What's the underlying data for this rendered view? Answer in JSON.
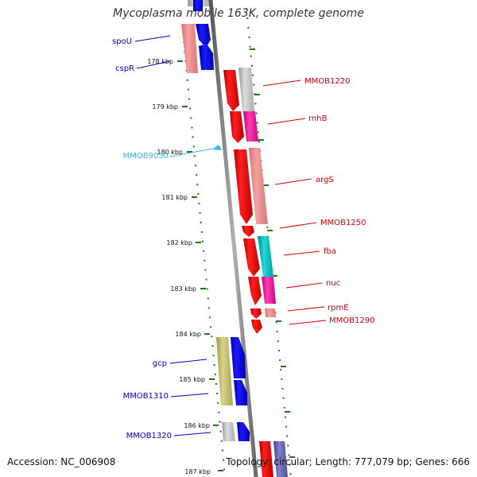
{
  "title": "Mycoplasma mobile 163K, complete genome",
  "accession": "Accession: NC_006908",
  "topology": "Topology: circular; Length: 777,079 bp; Genes: 666",
  "ticks": [
    "178 kbp",
    "179 kbp",
    "180 kbp",
    "181 kbp",
    "182 kbp",
    "183 kbp",
    "184 kbp",
    "185 kbp",
    "186 kbp",
    "187 kbp"
  ],
  "colors": {
    "backbone": "#808080",
    "tick": "#1a7a1a",
    "label_blue": "#0000cc",
    "label_red": "#cc0000",
    "label_cyan": "#33bbdd"
  },
  "genes": [
    {
      "name": "spoU",
      "side": "left",
      "color": "#0000cc"
    },
    {
      "name": "cspR",
      "side": "left",
      "color": "#0000cc"
    },
    {
      "name": "MMOB1220",
      "side": "right",
      "color": "#cc0000"
    },
    {
      "name": "rnhB",
      "side": "right",
      "color": "#cc0000"
    },
    {
      "name": "MMOB9030",
      "side": "left",
      "color": "#33bbdd"
    },
    {
      "name": "argS",
      "side": "right",
      "color": "#cc0000"
    },
    {
      "name": "MMOB1250",
      "side": "right",
      "color": "#cc0000"
    },
    {
      "name": "fba",
      "side": "right",
      "color": "#cc0000"
    },
    {
      "name": "nuc",
      "side": "right",
      "color": "#cc0000"
    },
    {
      "name": "rpmE",
      "side": "right",
      "color": "#cc0000"
    },
    {
      "name": "MMOB1290",
      "side": "right",
      "color": "#cc0000"
    },
    {
      "name": "gcp",
      "side": "left",
      "color": "#0000cc"
    },
    {
      "name": "MMOB1310",
      "side": "left",
      "color": "#0000cc"
    },
    {
      "name": "MMOB1320",
      "side": "left",
      "color": "#0000cc"
    }
  ]
}
